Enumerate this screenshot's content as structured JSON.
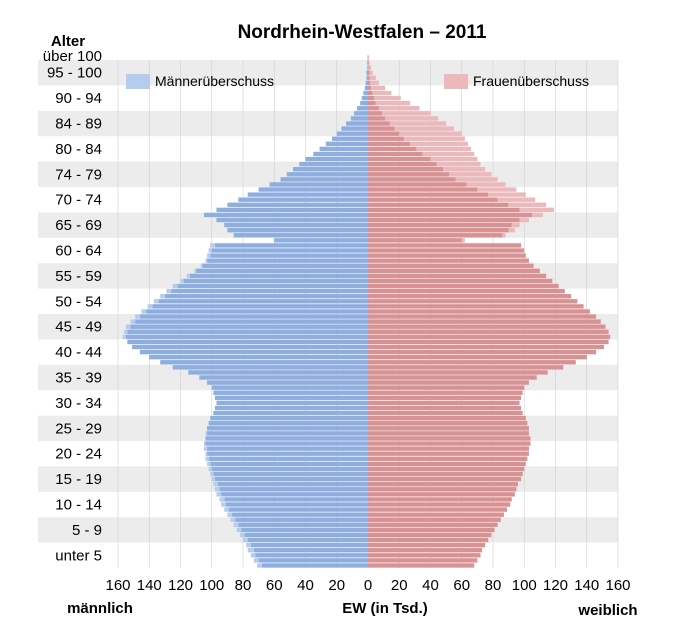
{
  "chart_data": {
    "type": "bar",
    "subtype": "population-pyramid",
    "title": "Nordrhein-Westfalen – 2011",
    "y_title": "Alter",
    "x_title": "EW (in Tsd.)",
    "left_label": "männlich",
    "right_label": "weiblich",
    "xlim": [
      0,
      160
    ],
    "x_ticks": [
      160,
      140,
      120,
      100,
      80,
      60,
      40,
      20,
      0,
      20,
      40,
      60,
      80,
      100,
      120,
      140,
      160
    ],
    "y_tick_labels": [
      "unter 5",
      "5 - 9",
      "10 - 14",
      "15 - 19",
      "20 - 24",
      "25 - 29",
      "30 - 34",
      "35 - 39",
      "40 - 44",
      "45 - 49",
      "50 - 54",
      "55 - 59",
      "60 - 64",
      "65 - 69",
      "70 - 74",
      "74 - 79",
      "80 - 84",
      "84 - 89",
      "90 - 94",
      "95 - 100",
      "über 100"
    ],
    "legend": [
      "Männerüberschuss",
      "Frauenüberschuss"
    ],
    "grid": true,
    "colors": {
      "male": "#8eaee0",
      "female": "#d99294",
      "male_surplus": "#b4cdee",
      "female_surplus": "#ebb9bb",
      "band": "#ececec",
      "grid": "#d0d0d0"
    },
    "age_groups_5yr": [
      "unter 5",
      "5 - 9",
      "10 - 14",
      "15 - 19",
      "20 - 24",
      "25 - 29",
      "30 - 34",
      "35 - 39",
      "40 - 44",
      "45 - 49",
      "50 - 54",
      "55 - 59",
      "60 - 64",
      "65 - 69",
      "70 - 74",
      "74 - 79",
      "80 - 84",
      "84 - 89",
      "90 - 94",
      "95 - 100"
    ],
    "series": [
      {
        "name": "männlich",
        "values_single_year_approx": [
          71,
          73,
          75,
          77,
          78,
          80,
          82,
          84,
          86,
          88,
          90,
          92,
          94,
          95,
          97,
          98,
          99,
          100,
          101,
          102,
          103,
          104,
          104,
          105,
          105,
          104,
          104,
          103,
          102,
          101,
          99,
          98,
          97,
          98,
          99,
          100,
          103,
          108,
          115,
          125,
          133,
          140,
          146,
          151,
          154,
          157,
          156,
          155,
          152,
          149,
          145,
          141,
          137,
          133,
          129,
          125,
          120,
          116,
          111,
          107,
          104,
          103,
          102,
          101,
          60,
          86,
          90,
          92,
          97,
          105,
          97,
          90,
          83,
          77,
          70,
          63,
          56,
          52,
          48,
          44,
          40,
          35,
          31,
          27,
          23,
          20,
          17,
          14,
          11,
          9,
          7,
          5,
          4,
          3,
          2,
          1.5,
          1,
          1,
          0.5,
          0.5,
          0.3
        ]
      },
      {
        "name": "weiblich",
        "values_single_year_approx": [
          68,
          70,
          72,
          73,
          75,
          77,
          79,
          81,
          83,
          85,
          87,
          89,
          91,
          92,
          94,
          95,
          96,
          98,
          99,
          100,
          101,
          102,
          103,
          103,
          104,
          104,
          103,
          103,
          102,
          101,
          99,
          98,
          97,
          98,
          99,
          100,
          103,
          108,
          115,
          125,
          133,
          140,
          146,
          151,
          154,
          155,
          154,
          152,
          149,
          146,
          142,
          138,
          134,
          130,
          126,
          122,
          118,
          114,
          110,
          106,
          103,
          101,
          100,
          98,
          62,
          88,
          94,
          97,
          103,
          112,
          119,
          114,
          107,
          101,
          95,
          88,
          83,
          79,
          75,
          72,
          70,
          68,
          66,
          64,
          62,
          60,
          55,
          50,
          45,
          40,
          33,
          27,
          21,
          15,
          11,
          7,
          5,
          3,
          2,
          1,
          0.5
        ]
      }
    ]
  }
}
